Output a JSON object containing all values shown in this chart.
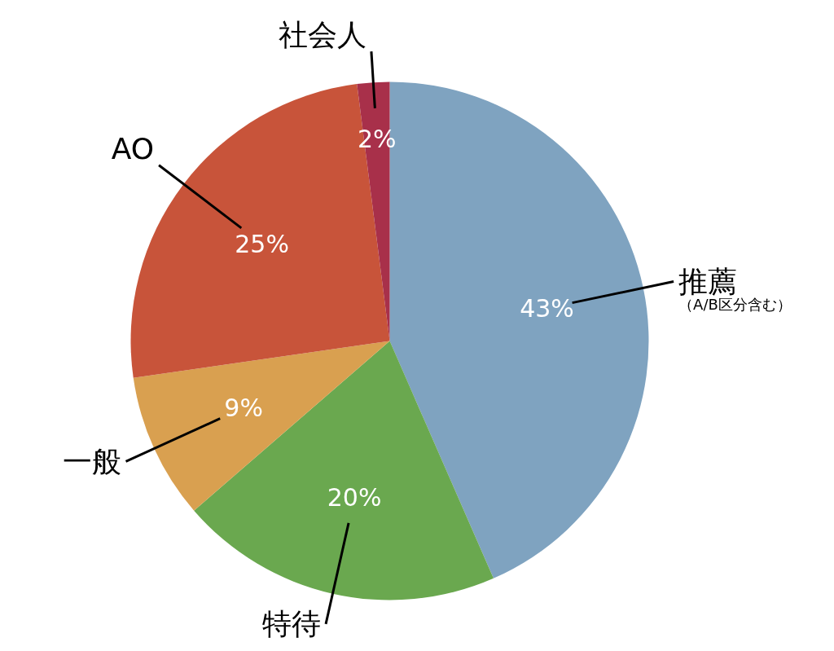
{
  "chart_data": {
    "type": "pie",
    "categories": [
      "推薦",
      "特待",
      "一般",
      "AO",
      "社会人"
    ],
    "values": [
      43,
      20,
      9,
      25,
      2
    ],
    "value_labels": [
      "43%",
      "20%",
      "9%",
      "25%",
      "2%"
    ],
    "colors": [
      "#7fa3c0",
      "#6aa84f",
      "#d9a050",
      "#c8543a",
      "#a8304a"
    ],
    "annotations": [
      "（A/B区分含む）"
    ]
  }
}
